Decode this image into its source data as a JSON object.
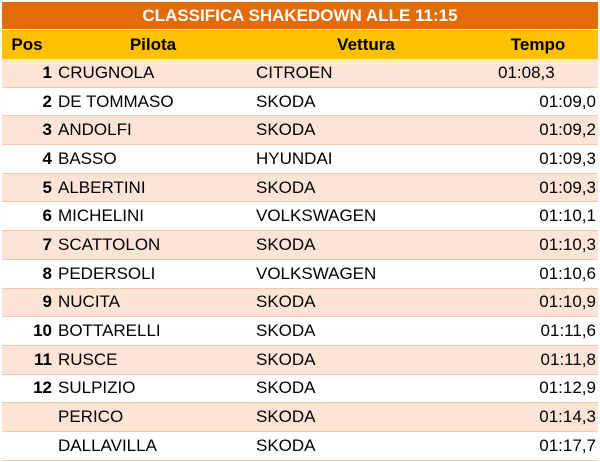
{
  "title": "CLASSIFICA SHAKEDOWN ALLE 11:15",
  "headers": {
    "pos": "Pos",
    "pilota": "Pilota",
    "vettura": "Vettura",
    "tempo": "Tempo"
  },
  "rows": [
    {
      "pos": "1",
      "pilota": "CRUGNOLA",
      "vettura": "CITROEN",
      "tempo": "01:08,3"
    },
    {
      "pos": "2",
      "pilota": "DE TOMMASO",
      "vettura": "SKODA",
      "tempo": "01:09,0"
    },
    {
      "pos": "3",
      "pilota": "ANDOLFI",
      "vettura": "SKODA",
      "tempo": "01:09,2"
    },
    {
      "pos": "4",
      "pilota": "BASSO",
      "vettura": "HYUNDAI",
      "tempo": "01:09,3"
    },
    {
      "pos": "5",
      "pilota": "ALBERTINI",
      "vettura": "SKODA",
      "tempo": "01:09,3"
    },
    {
      "pos": "6",
      "pilota": "MICHELINI",
      "vettura": "VOLKSWAGEN",
      "tempo": "01:10,1"
    },
    {
      "pos": "7",
      "pilota": "SCATTOLON",
      "vettura": "SKODA",
      "tempo": "01:10,3"
    },
    {
      "pos": "8",
      "pilota": "PEDERSOLI",
      "vettura": "VOLKSWAGEN",
      "tempo": "01:10,6"
    },
    {
      "pos": "9",
      "pilota": "NUCITA",
      "vettura": "SKODA",
      "tempo": "01:10,9"
    },
    {
      "pos": "10",
      "pilota": "BOTTARELLI",
      "vettura": "SKODA",
      "tempo": "01:11,6"
    },
    {
      "pos": "11",
      "pilota": "RUSCE",
      "vettura": "SKODA",
      "tempo": "01:11,8"
    },
    {
      "pos": "12",
      "pilota": "SULPIZIO",
      "vettura": "SKODA",
      "tempo": "01:12,9"
    },
    {
      "pos": "",
      "pilota": "PERICO",
      "vettura": "SKODA",
      "tempo": "01:14,3"
    },
    {
      "pos": "",
      "pilota": "DALLAVILLA",
      "vettura": "SKODA",
      "tempo": "01:17,7"
    }
  ],
  "colors": {
    "title_bg": "#e26b0a",
    "header_bg": "#ffc000",
    "band": "#fce4d6"
  }
}
